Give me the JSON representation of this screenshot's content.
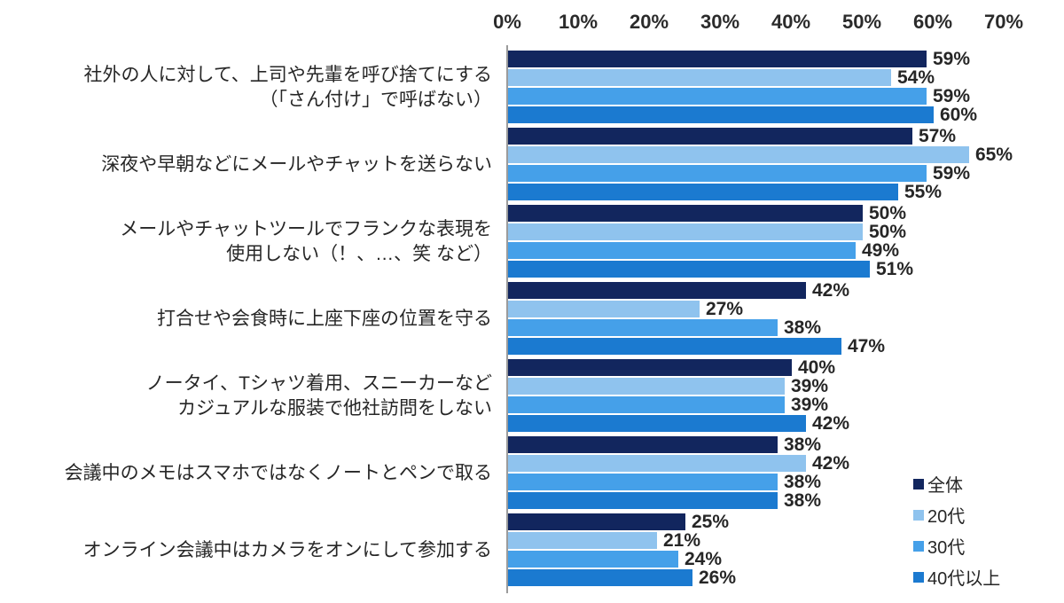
{
  "chart_data": {
    "type": "bar",
    "orientation": "horizontal",
    "title": "",
    "xlabel": "",
    "ylabel": "",
    "x_axis": {
      "ticks": [
        "0%",
        "10%",
        "20%",
        "30%",
        "40%",
        "50%",
        "60%",
        "70%"
      ],
      "min": 0,
      "max": 70,
      "position": "top"
    },
    "grid": false,
    "value_suffix": "%",
    "categories": [
      [
        "社外の人に対して、上司や先輩を呼び捨てにする",
        "（「さん付け」で呼ばない）"
      ],
      [
        "深夜や早朝などにメールやチャットを送らない"
      ],
      [
        "メールやチャットツールでフランクな表現を",
        "使用しない（！、…、笑 など）"
      ],
      [
        "打合せや会食時に上座下座の位置を守る"
      ],
      [
        "ノータイ、Tシャツ着用、スニーカーなど",
        "カジュアルな服装で他社訪問をしない"
      ],
      [
        "会議中のメモはスマホではなくノートとペンで取る"
      ],
      [
        "オンライン会議中はカメラをオンにして参加する"
      ]
    ],
    "series": [
      {
        "name": "全体",
        "color": "#12265e",
        "values": [
          59,
          57,
          50,
          42,
          40,
          38,
          25
        ]
      },
      {
        "name": "20代",
        "color": "#8fc3ee",
        "values": [
          54,
          65,
          50,
          27,
          39,
          42,
          21
        ]
      },
      {
        "name": "30代",
        "color": "#45a0e9",
        "values": [
          59,
          59,
          49,
          38,
          39,
          38,
          24
        ]
      },
      {
        "name": "40代以上",
        "color": "#1b7ad0",
        "values": [
          60,
          55,
          51,
          47,
          42,
          38,
          26
        ]
      }
    ],
    "legend_position": "bottom-right"
  },
  "layout_colors": {
    "axis_line": "#9b9b9b",
    "text": "#262626",
    "background": "#ffffff"
  }
}
